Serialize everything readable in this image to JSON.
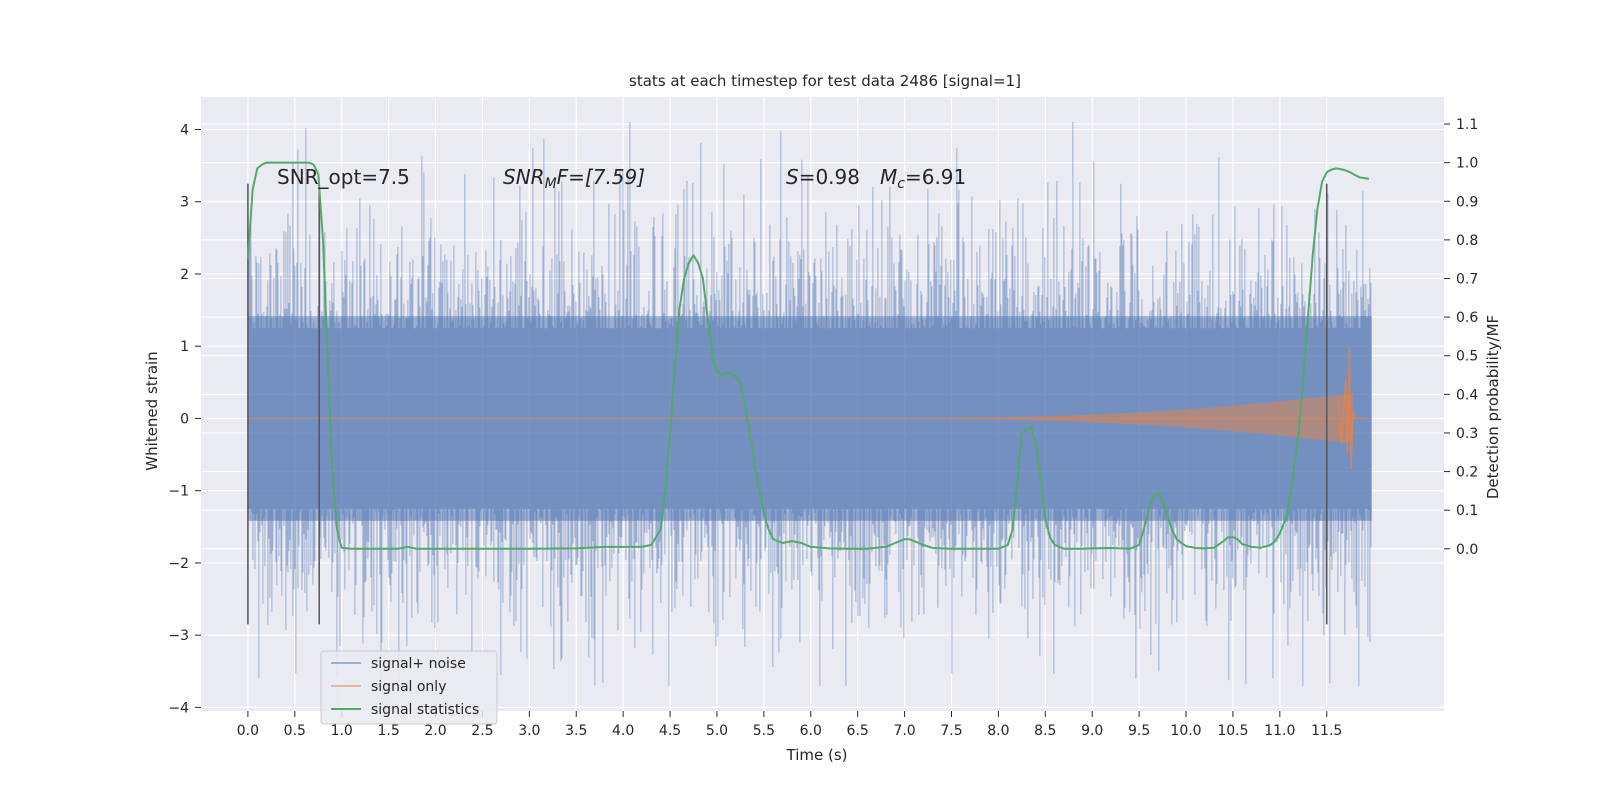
{
  "chart_data": {
    "type": "line",
    "title": "stats at each timestep for test data 2486 [signal=1]",
    "xlabel": "Time (s)",
    "ylabel": "Whitened strain",
    "ylabel_right": "Detection probability/MF",
    "xlim": [
      -0.5,
      12.75
    ],
    "ylim": [
      -4.05,
      4.45
    ],
    "ylim_right": [
      -0.42,
      1.17
    ],
    "x_ticks": [
      0.0,
      0.5,
      1.0,
      1.5,
      2.0,
      2.5,
      3.0,
      3.5,
      4.0,
      4.5,
      5.0,
      5.5,
      6.0,
      6.5,
      7.0,
      7.5,
      8.0,
      8.5,
      9.0,
      9.5,
      10.0,
      10.5,
      11.0,
      11.5
    ],
    "x_tick_labels": [
      "0.0",
      "0.5",
      "1.0",
      "1.5",
      "2.0",
      "2.5",
      "3.0",
      "3.5",
      "4.0",
      "4.5",
      "5.0",
      "5.5",
      "6.0",
      "6.5",
      "7.0",
      "7.5",
      "8.0",
      "8.5",
      "9.0",
      "9.5",
      "10.0",
      "10.5",
      "11.0",
      "11.5"
    ],
    "y_ticks": [
      -4,
      -3,
      -2,
      -1,
      0,
      1,
      2,
      3,
      4
    ],
    "y_tick_labels": [
      "−4",
      "−3",
      "−2",
      "−1",
      "0",
      "1",
      "2",
      "3",
      "4"
    ],
    "y_right_ticks": [
      0.0,
      0.1,
      0.2,
      0.3,
      0.4,
      0.5,
      0.6,
      0.7,
      0.8,
      0.9,
      1.0,
      1.1
    ],
    "y_right_tick_labels": [
      "0.0",
      "0.1",
      "0.2",
      "0.3",
      "0.4",
      "0.5",
      "0.6",
      "0.7",
      "0.8",
      "0.9",
      "1.0",
      "1.1"
    ],
    "grid": true,
    "legend_position": "lower-left",
    "background": "#eaeaf2",
    "colors": {
      "noise": "#4c72b0",
      "signal": "#dd8452",
      "statistics": "#55a868",
      "marker": "#555555"
    },
    "legend": [
      "signal+ noise",
      "signal only",
      "signal statistics"
    ],
    "annotations": {
      "snr_opt": "SNR_opt=7.5",
      "snr_mf_main": "SNR",
      "snr_mf_sub": "M",
      "snr_mf_rest": "F=[7.59]",
      "s_main": "S",
      "s_rest": "=0.98",
      "mc_main": "M",
      "mc_sub": "c",
      "mc_rest": "=6.91"
    },
    "noise": {
      "x_start": 0.0,
      "x_end": 11.98,
      "band_sigma": 1.05,
      "peak_max": 4.1,
      "peak_min": -3.7
    },
    "signal_only": {
      "onset_x": 7.3,
      "end_x": 11.78,
      "max_amplitude": 1.0
    },
    "vertical_markers": {
      "x": [
        0.0,
        0.76,
        11.5
      ],
      "y_range": [
        -2.85,
        3.25
      ]
    },
    "statistics": {
      "series_name": "signal statistics",
      "x": [
        0.0,
        0.05,
        0.1,
        0.15,
        0.2,
        0.3,
        0.4,
        0.5,
        0.6,
        0.65,
        0.7,
        0.75,
        0.8,
        0.85,
        0.9,
        0.95,
        1.0,
        1.1,
        1.3,
        1.6,
        1.7,
        1.8,
        2.0,
        2.5,
        3.0,
        3.5,
        3.8,
        4.0,
        4.2,
        4.3,
        4.4,
        4.45,
        4.5,
        4.55,
        4.6,
        4.65,
        4.7,
        4.75,
        4.8,
        4.85,
        4.9,
        4.95,
        5.0,
        5.05,
        5.1,
        5.15,
        5.2,
        5.25,
        5.3,
        5.35,
        5.4,
        5.45,
        5.5,
        5.55,
        5.6,
        5.7,
        5.8,
        5.9,
        6.0,
        6.2,
        6.4,
        6.6,
        6.8,
        6.9,
        7.0,
        7.05,
        7.1,
        7.2,
        7.3,
        7.5,
        8.0,
        8.1,
        8.15,
        8.2,
        8.25,
        8.3,
        8.35,
        8.4,
        8.45,
        8.5,
        8.55,
        8.6,
        8.7,
        8.8,
        8.9,
        9.0,
        9.2,
        9.4,
        9.5,
        9.55,
        9.6,
        9.65,
        9.7,
        9.75,
        9.8,
        9.85,
        9.9,
        9.95,
        10.0,
        10.1,
        10.2,
        10.3,
        10.4,
        10.45,
        10.5,
        10.55,
        10.6,
        10.7,
        10.8,
        10.9,
        10.95,
        11.0,
        11.05,
        11.1,
        11.15,
        11.2,
        11.25,
        11.3,
        11.35,
        11.4,
        11.45,
        11.5,
        11.55,
        11.6,
        11.65,
        11.7,
        11.75,
        11.8,
        11.85,
        11.9,
        11.95
      ],
      "y": [
        0.75,
        0.93,
        0.985,
        0.995,
        1.0,
        1.0,
        1.0,
        1.0,
        1.0,
        1.0,
        0.995,
        0.97,
        0.8,
        0.5,
        0.2,
        0.05,
        0.003,
        0.0,
        0.0,
        0.0,
        0.005,
        0.0,
        0.0,
        0.0,
        0.0,
        0.001,
        0.005,
        0.005,
        0.005,
        0.01,
        0.05,
        0.15,
        0.3,
        0.46,
        0.62,
        0.7,
        0.74,
        0.76,
        0.74,
        0.7,
        0.6,
        0.5,
        0.46,
        0.45,
        0.455,
        0.455,
        0.445,
        0.43,
        0.37,
        0.3,
        0.22,
        0.15,
        0.09,
        0.05,
        0.025,
        0.015,
        0.02,
        0.015,
        0.005,
        0.001,
        0.0,
        0.0,
        0.005,
        0.015,
        0.025,
        0.025,
        0.02,
        0.01,
        0.002,
        0.0,
        0.0,
        0.01,
        0.05,
        0.17,
        0.3,
        0.31,
        0.315,
        0.27,
        0.18,
        0.08,
        0.03,
        0.01,
        0.0,
        0.0,
        0.0,
        0.001,
        0.002,
        0.0,
        0.01,
        0.05,
        0.1,
        0.135,
        0.145,
        0.125,
        0.09,
        0.05,
        0.025,
        0.015,
        0.007,
        0.002,
        0.001,
        0.003,
        0.02,
        0.03,
        0.03,
        0.025,
        0.012,
        0.005,
        0.003,
        0.01,
        0.02,
        0.04,
        0.07,
        0.12,
        0.2,
        0.3,
        0.44,
        0.6,
        0.76,
        0.88,
        0.95,
        0.975,
        0.982,
        0.985,
        0.983,
        0.98,
        0.975,
        0.968,
        0.962,
        0.96,
        0.958
      ]
    }
  }
}
